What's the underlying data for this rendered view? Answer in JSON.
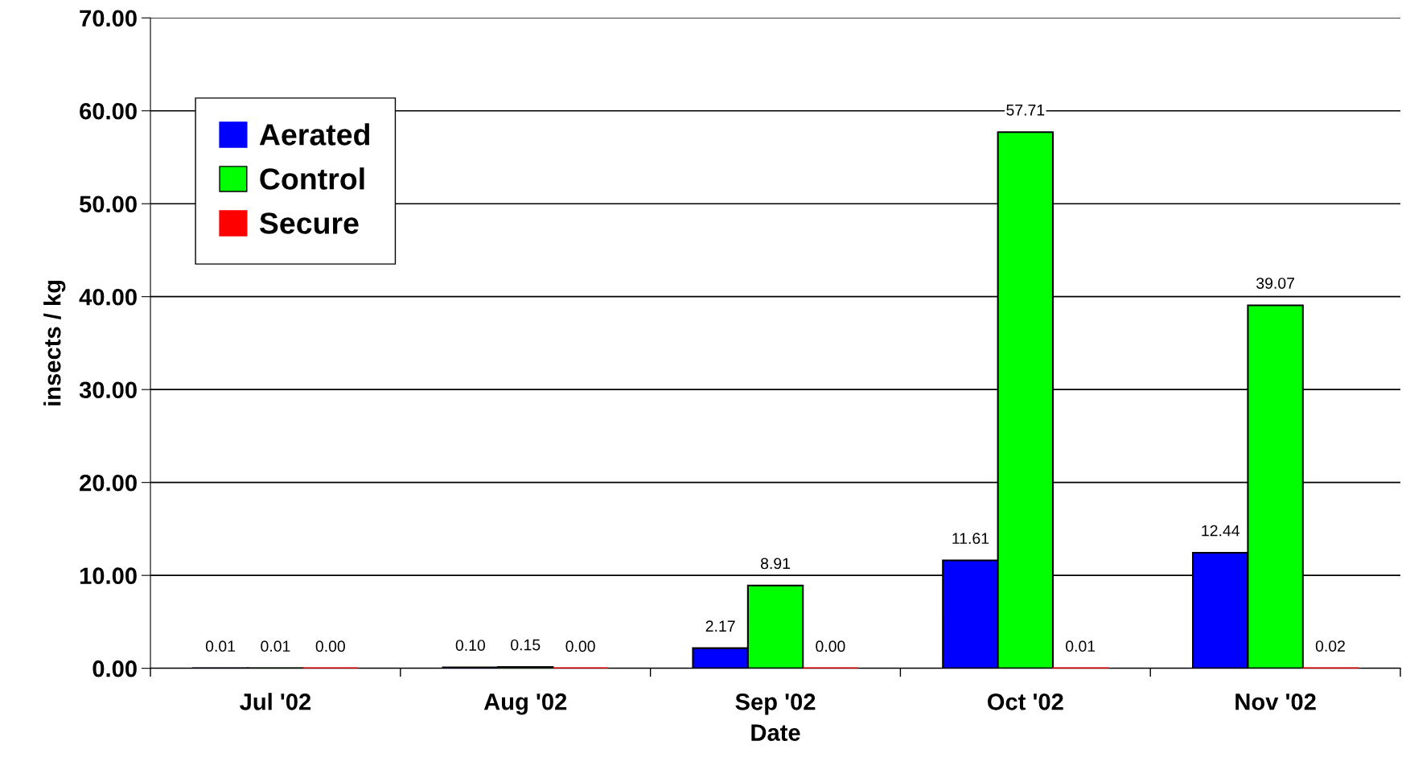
{
  "chart_data": {
    "type": "bar",
    "xlabel": "Date",
    "ylabel": "insects / kg",
    "categories": [
      "Jul '02",
      "Aug '02",
      "Sep '02",
      "Oct '02",
      "Nov '02"
    ],
    "series": [
      {
        "name": "Aerated",
        "color": "#0000ff",
        "values": [
          0.01,
          0.1,
          2.17,
          11.61,
          12.44
        ],
        "value_labels": [
          "0.01",
          "0.10",
          "2.17",
          "11.61",
          "12.44"
        ]
      },
      {
        "name": "Control",
        "color": "#00ff00",
        "values": [
          0.01,
          0.15,
          8.91,
          57.71,
          39.07
        ],
        "value_labels": [
          "0.01",
          "0.15",
          "8.91",
          "57.71",
          "39.07"
        ]
      },
      {
        "name": "Secure",
        "color": "#ff0000",
        "values": [
          0.0,
          0.0,
          0.0,
          0.01,
          0.02
        ],
        "value_labels": [
          "0.00",
          "0.00",
          "0.00",
          "0.01",
          "0.02"
        ]
      }
    ],
    "ylim": [
      0,
      70
    ],
    "yticks": [
      {
        "value": 0,
        "label": "0.00"
      },
      {
        "value": 10,
        "label": "10.00"
      },
      {
        "value": 20,
        "label": "20.00"
      },
      {
        "value": 30,
        "label": "30.00"
      },
      {
        "value": 40,
        "label": "40.00"
      },
      {
        "value": 50,
        "label": "50.00"
      },
      {
        "value": 60,
        "label": "60.00"
      },
      {
        "value": 70,
        "label": "70.00"
      }
    ],
    "grid": "y",
    "legend": "top left"
  }
}
